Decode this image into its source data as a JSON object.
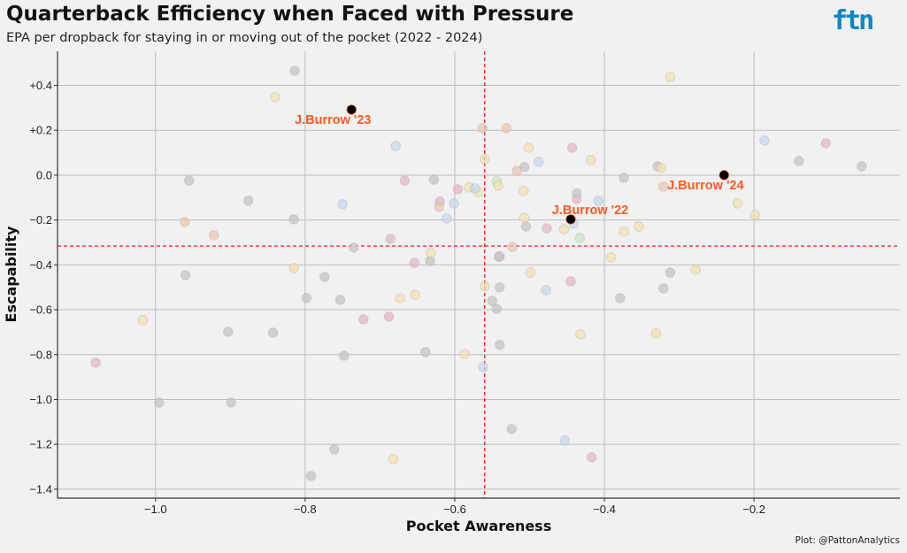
{
  "header": {
    "title": "Quarterback Efficiency when Faced with Pressure",
    "subtitle": "EPA per dropback for staying in or moving out of the pocket (2022 - 2024)",
    "logo": "ftn"
  },
  "caption": "Plot: @PattonAnalytics",
  "colors": {
    "accent": "#ff5a1f",
    "ref_line": "#ff0000",
    "g": "#c4c4c4",
    "y": "#f3e0ae",
    "r": "#e6b6c0",
    "b": "#c6d8ef",
    "o": "#efc6b0",
    "gr": "#cfe6c6"
  },
  "chart_data": {
    "type": "scatter",
    "title": "Quarterback Efficiency when Faced with Pressure",
    "xlabel": "Pocket Awareness",
    "ylabel": "Escapability",
    "xlim": [
      -1.131,
      -0.005
    ],
    "ylim": [
      -1.44,
      0.552
    ],
    "grid": true,
    "x_ticks": [
      {
        "v": -1.0,
        "label": "−1.0"
      },
      {
        "v": -0.8,
        "label": "−0.8"
      },
      {
        "v": -0.6,
        "label": "−0.6"
      },
      {
        "v": -0.4,
        "label": "−0.4"
      },
      {
        "v": -0.2,
        "label": "−0.2"
      }
    ],
    "y_ticks": [
      {
        "v": 0.4,
        "label": "+0.4"
      },
      {
        "v": 0.2,
        "label": "+0.2"
      },
      {
        "v": 0,
        "label": "0.0"
      },
      {
        "v": -0.2,
        "label": "−0.2"
      },
      {
        "v": -0.4,
        "label": "−0.4"
      },
      {
        "v": -0.6,
        "label": "−0.6"
      },
      {
        "v": -0.8,
        "label": "−0.8"
      },
      {
        "v": -1.0,
        "label": "−1.0"
      },
      {
        "v": -1.2,
        "label": "−1.2"
      },
      {
        "v": -1.4,
        "label": "−1.4"
      }
    ],
    "ref_lines": {
      "x": -0.56,
      "y": -0.316
    },
    "highlighted": [
      {
        "label": "J.Burrow '23",
        "x": -0.738,
        "y": 0.292,
        "label_pos": "below"
      },
      {
        "label": "J.Burrow '22",
        "x": -0.445,
        "y": -0.197,
        "label_pos": "above"
      },
      {
        "label": "J.Burrow '24",
        "x": -0.24,
        "y": 0.0,
        "label_pos": "below"
      }
    ],
    "points": [
      [
        -0.814,
        0.465,
        "g"
      ],
      [
        -0.84,
        0.347,
        "y"
      ],
      [
        -0.679,
        0.13,
        "b"
      ],
      [
        -0.955,
        -0.024,
        "g"
      ],
      [
        -0.876,
        -0.114,
        "g"
      ],
      [
        -0.75,
        -0.13,
        "b"
      ],
      [
        -0.815,
        -0.197,
        "g"
      ],
      [
        -0.961,
        -0.209,
        "o"
      ],
      [
        -0.922,
        -0.268,
        "o"
      ],
      [
        -0.735,
        -0.323,
        "g"
      ],
      [
        -0.686,
        -0.284,
        "r"
      ],
      [
        -0.667,
        -0.024,
        "r"
      ],
      [
        -0.628,
        -0.02,
        "g"
      ],
      [
        -0.62,
        -0.118,
        "r"
      ],
      [
        -0.621,
        -0.142,
        "o"
      ],
      [
        -0.601,
        -0.126,
        "b"
      ],
      [
        -0.611,
        -0.193,
        "b"
      ],
      [
        -0.596,
        -0.063,
        "r"
      ],
      [
        -0.581,
        -0.055,
        "y"
      ],
      [
        -0.569,
        -0.075,
        "y"
      ],
      [
        -0.573,
        -0.059,
        "b"
      ],
      [
        -0.563,
        0.209,
        "o"
      ],
      [
        -0.56,
        0.071,
        "y"
      ],
      [
        -0.531,
        0.209,
        "o"
      ],
      [
        -0.501,
        0.122,
        "y"
      ],
      [
        -0.488,
        0.059,
        "b"
      ],
      [
        -0.507,
        0.036,
        "g"
      ],
      [
        -0.517,
        0.02,
        "o"
      ],
      [
        -0.544,
        -0.028,
        "gr"
      ],
      [
        -0.542,
        -0.047,
        "y"
      ],
      [
        -0.443,
        0.122,
        "r"
      ],
      [
        -0.418,
        0.067,
        "y"
      ],
      [
        -0.312,
        0.438,
        "y"
      ],
      [
        -0.374,
        -0.012,
        "g"
      ],
      [
        -0.329,
        0.039,
        "g"
      ],
      [
        -0.324,
        0.032,
        "y"
      ],
      [
        -0.321,
        -0.051,
        "o"
      ],
      [
        -0.186,
        0.154,
        "b"
      ],
      [
        -0.104,
        0.142,
        "r"
      ],
      [
        -0.14,
        0.063,
        "g"
      ],
      [
        -0.056,
        0.039,
        "g"
      ],
      [
        -0.222,
        -0.126,
        "y"
      ],
      [
        -0.199,
        -0.178,
        "y"
      ],
      [
        -0.508,
        -0.071,
        "y"
      ],
      [
        -0.441,
        -0.217,
        "b"
      ],
      [
        -0.437,
        -0.107,
        "r"
      ],
      [
        -0.437,
        -0.082,
        "g"
      ],
      [
        -0.477,
        -0.237,
        "r"
      ],
      [
        -0.505,
        -0.229,
        "g"
      ],
      [
        -0.408,
        -0.114,
        "b"
      ],
      [
        -0.454,
        -0.241,
        "y"
      ],
      [
        -0.433,
        -0.28,
        "gr"
      ],
      [
        -0.507,
        -0.19,
        "y"
      ],
      [
        -0.374,
        -0.252,
        "y"
      ],
      [
        -0.354,
        -0.229,
        "y"
      ],
      [
        -0.391,
        -0.367,
        "y"
      ],
      [
        -0.312,
        -0.434,
        "g"
      ],
      [
        -0.278,
        -0.422,
        "y"
      ],
      [
        -0.321,
        -0.505,
        "g"
      ],
      [
        -0.331,
        -0.706,
        "y"
      ],
      [
        -0.379,
        -0.548,
        "g"
      ],
      [
        -0.432,
        -0.71,
        "y"
      ],
      [
        -0.478,
        -0.513,
        "b"
      ],
      [
        -0.445,
        -0.473,
        "r"
      ],
      [
        -0.499,
        -0.434,
        "y"
      ],
      [
        -0.523,
        -0.32,
        "o"
      ],
      [
        -0.541,
        -0.363,
        "r"
      ],
      [
        -0.54,
        -0.363,
        "g"
      ],
      [
        -0.54,
        -0.501,
        "g"
      ],
      [
        -0.56,
        -0.497,
        "y"
      ],
      [
        -0.55,
        -0.56,
        "g"
      ],
      [
        -0.544,
        -0.596,
        "g"
      ],
      [
        -0.54,
        -0.757,
        "g"
      ],
      [
        -0.587,
        -0.797,
        "y"
      ],
      [
        -0.562,
        -0.856,
        "b"
      ],
      [
        -0.96,
        -0.446,
        "g"
      ],
      [
        -0.815,
        -0.414,
        "y"
      ],
      [
        -0.774,
        -0.454,
        "g"
      ],
      [
        -0.753,
        -0.556,
        "g"
      ],
      [
        -0.798,
        -0.548,
        "g"
      ],
      [
        -0.722,
        -0.643,
        "r"
      ],
      [
        -0.673,
        -0.548,
        "y"
      ],
      [
        -0.653,
        -0.533,
        "y"
      ],
      [
        -0.688,
        -0.631,
        "r"
      ],
      [
        -0.903,
        -0.698,
        "g"
      ],
      [
        -1.017,
        -0.647,
        "y"
      ],
      [
        -0.843,
        -0.702,
        "g"
      ],
      [
        -0.748,
        -0.805,
        "g"
      ],
      [
        -1.08,
        -0.836,
        "r"
      ],
      [
        -0.995,
        -1.014,
        "g"
      ],
      [
        -0.899,
        -1.014,
        "g"
      ],
      [
        -0.639,
        -0.789,
        "g"
      ],
      [
        -0.524,
        -1.132,
        "g"
      ],
      [
        -0.453,
        -1.183,
        "b"
      ],
      [
        -0.761,
        -1.223,
        "g"
      ],
      [
        -0.792,
        -1.341,
        "g"
      ],
      [
        -0.682,
        -1.266,
        "y"
      ],
      [
        -0.417,
        -1.258,
        "r"
      ],
      [
        -0.654,
        -0.391,
        "r"
      ],
      [
        -0.633,
        -0.383,
        "g"
      ],
      [
        -0.632,
        -0.347,
        "y"
      ]
    ]
  }
}
